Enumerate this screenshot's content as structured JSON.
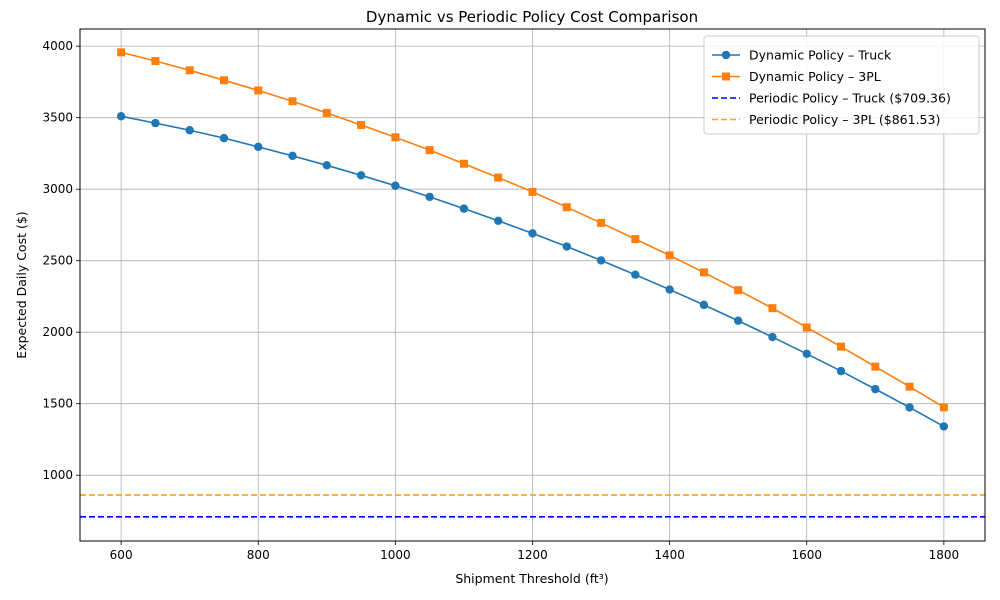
{
  "chart_data": {
    "type": "line",
    "title": "Dynamic vs Periodic Policy Cost Comparison",
    "xlabel": "Shipment Threshold (ft³)",
    "ylabel": "Expected Daily Cost ($)",
    "xlim": [
      540,
      1860
    ],
    "ylim": [
      540,
      4120
    ],
    "x_ticks": [
      600,
      800,
      1000,
      1200,
      1400,
      1600,
      1800
    ],
    "y_ticks": [
      1000,
      1500,
      2000,
      2500,
      3000,
      3500,
      4000
    ],
    "grid": true,
    "legend_position": "top-right",
    "x": [
      600,
      650,
      700,
      750,
      800,
      850,
      900,
      950,
      1000,
      1050,
      1100,
      1150,
      1200,
      1250,
      1300,
      1350,
      1400,
      1450,
      1500,
      1550,
      1600,
      1650,
      1700,
      1750,
      1800
    ],
    "series": [
      {
        "name": "Dynamic Policy – Truck",
        "color": "#1f77b4",
        "marker": "circle",
        "values": [
          3510,
          3462,
          3412,
          3357,
          3296,
          3233,
          3167,
          3097,
          3024,
          2946,
          2864,
          2779,
          2691,
          2599,
          2502,
          2402,
          2298,
          2191,
          2080,
          1966,
          1849,
          1728,
          1602,
          1474,
          1341
        ]
      },
      {
        "name": "Dynamic Policy – 3PL",
        "color": "#ff7f0e",
        "marker": "square",
        "values": [
          3957,
          3896,
          3831,
          3762,
          3690,
          3615,
          3533,
          3449,
          3363,
          3273,
          3178,
          3081,
          2981,
          2874,
          2764,
          2651,
          2537,
          2418,
          2294,
          2168,
          2033,
          1899,
          1759,
          1619,
          1475
        ]
      }
    ],
    "reference_lines": [
      {
        "name": "Periodic Policy – Truck ($709.36)",
        "value": 709.36,
        "color": "#0000ff",
        "style": "dashed"
      },
      {
        "name": "Periodic Policy – 3PL ($861.53)",
        "value": 861.53,
        "color": "#ffa500",
        "style": "dashed"
      }
    ]
  }
}
